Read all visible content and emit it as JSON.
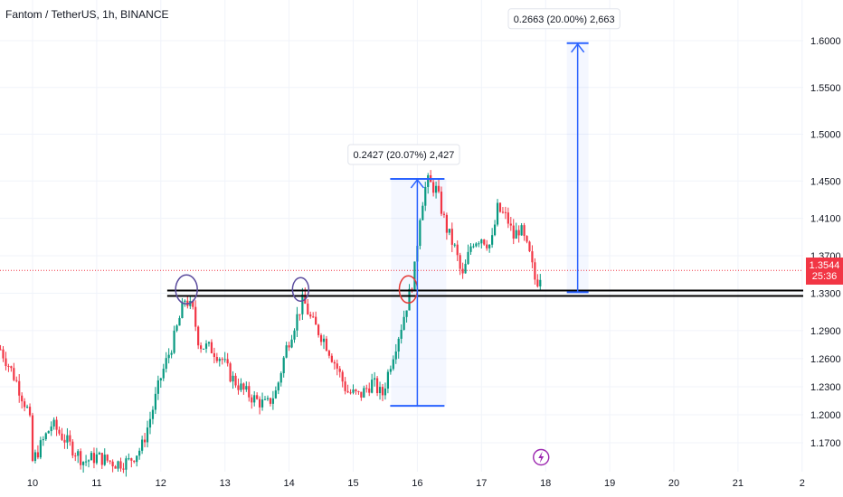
{
  "header": {
    "title": "Fantom / TetherUS, 1h, BINANCE"
  },
  "price_label": {
    "value": "1.3544",
    "countdown": "25:36",
    "color": "#f23645"
  },
  "colors": {
    "up": "#089981",
    "down": "#f23645",
    "level_line": "#000000",
    "measure": "#2962ff"
  },
  "chart_data": {
    "type": "candlestick",
    "title": "Fantom / TetherUS, 1h, BINANCE",
    "x_ticks": [
      "10",
      "11",
      "12",
      "13",
      "14",
      "15",
      "16",
      "17",
      "18",
      "19",
      "20",
      "21",
      "2"
    ],
    "y_ticks": [
      "1.6000",
      "1.5500",
      "1.5000",
      "1.4500",
      "1.4100",
      "1.3700",
      "1.3300",
      "1.2900",
      "1.2600",
      "1.2300",
      "1.2000",
      "1.1700"
    ],
    "ylim": [
      1.145,
      1.65
    ],
    "support_level": 1.33,
    "last_price": 1.3544,
    "close_path": [
      {
        "x": 9.5,
        "y": 1.27
      },
      {
        "x": 9.65,
        "y": 1.25
      },
      {
        "x": 9.75,
        "y": 1.235
      },
      {
        "x": 9.95,
        "y": 1.2
      },
      {
        "x": 10.0,
        "y": 1.15
      },
      {
        "x": 10.3,
        "y": 1.19
      },
      {
        "x": 10.55,
        "y": 1.17
      },
      {
        "x": 10.8,
        "y": 1.15
      },
      {
        "x": 11.0,
        "y": 1.155
      },
      {
        "x": 11.3,
        "y": 1.148
      },
      {
        "x": 11.5,
        "y": 1.15
      },
      {
        "x": 11.7,
        "y": 1.165
      },
      {
        "x": 11.85,
        "y": 1.2
      },
      {
        "x": 12.0,
        "y": 1.24
      },
      {
        "x": 12.2,
        "y": 1.28
      },
      {
        "x": 12.38,
        "y": 1.325
      },
      {
        "x": 12.5,
        "y": 1.31
      },
      {
        "x": 12.6,
        "y": 1.275
      },
      {
        "x": 12.8,
        "y": 1.27
      },
      {
        "x": 12.95,
        "y": 1.26
      },
      {
        "x": 13.1,
        "y": 1.24
      },
      {
        "x": 13.3,
        "y": 1.225
      },
      {
        "x": 13.5,
        "y": 1.215
      },
      {
        "x": 13.65,
        "y": 1.21
      },
      {
        "x": 13.8,
        "y": 1.225
      },
      {
        "x": 13.95,
        "y": 1.27
      },
      {
        "x": 14.1,
        "y": 1.3
      },
      {
        "x": 14.22,
        "y": 1.323
      },
      {
        "x": 14.35,
        "y": 1.3
      },
      {
        "x": 14.55,
        "y": 1.28
      },
      {
        "x": 14.75,
        "y": 1.25
      },
      {
        "x": 14.9,
        "y": 1.225
      },
      {
        "x": 15.1,
        "y": 1.22
      },
      {
        "x": 15.3,
        "y": 1.235
      },
      {
        "x": 15.45,
        "y": 1.22
      },
      {
        "x": 15.6,
        "y": 1.26
      },
      {
        "x": 15.75,
        "y": 1.295
      },
      {
        "x": 15.88,
        "y": 1.33
      },
      {
        "x": 15.95,
        "y": 1.35
      },
      {
        "x": 16.05,
        "y": 1.42
      },
      {
        "x": 16.15,
        "y": 1.45
      },
      {
        "x": 16.3,
        "y": 1.44
      },
      {
        "x": 16.45,
        "y": 1.4
      },
      {
        "x": 16.6,
        "y": 1.375
      },
      {
        "x": 16.7,
        "y": 1.345
      },
      {
        "x": 16.85,
        "y": 1.385
      },
      {
        "x": 17.0,
        "y": 1.39
      },
      {
        "x": 17.15,
        "y": 1.38
      },
      {
        "x": 17.25,
        "y": 1.42
      },
      {
        "x": 17.4,
        "y": 1.41
      },
      {
        "x": 17.5,
        "y": 1.39
      },
      {
        "x": 17.6,
        "y": 1.4
      },
      {
        "x": 17.75,
        "y": 1.37
      },
      {
        "x": 17.85,
        "y": 1.34
      },
      {
        "x": 17.95,
        "y": 1.355
      }
    ],
    "annotations": [
      {
        "text": "0.2427 (20.07%) 2,427",
        "x_from": 16.0,
        "y_from": 1.2095,
        "y_to": 1.4522
      },
      {
        "text": "0.2663 (20.00%) 2,663",
        "x_from": 18.5,
        "y_from": 1.331,
        "y_to": 1.5973
      }
    ]
  }
}
